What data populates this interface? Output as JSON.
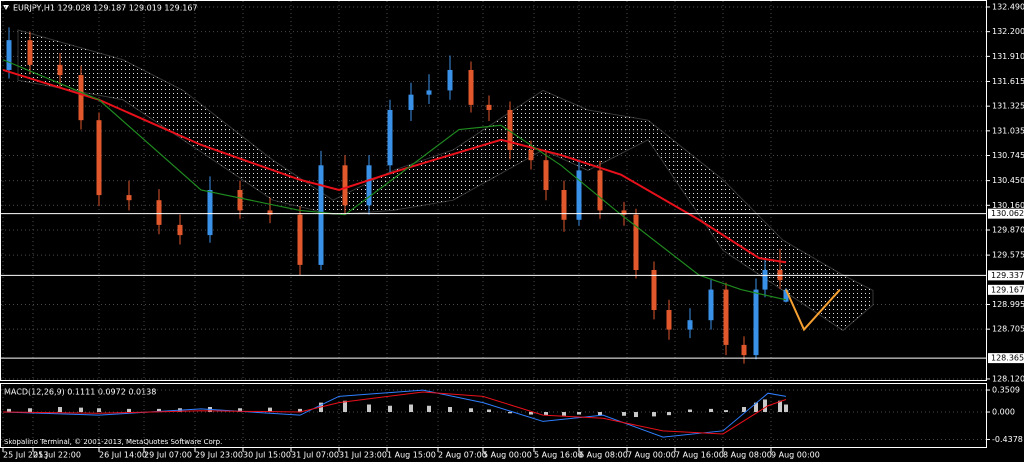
{
  "chart_data": [
    {
      "type": "candlestick",
      "title": "EURJPY,H1 129.028 129.187 129.019 129.167",
      "x": [
        2,
        9,
        19,
        26,
        32,
        42,
        52,
        59,
        69,
        79,
        89,
        99,
        106,
        114,
        122,
        129,
        136,
        142,
        149,
        156,
        162,
        169,
        176,
        181,
        187,
        192,
        199,
        207,
        211,
        217,
        222,
        229,
        236,
        241,
        247,
        251,
        254,
        259,
        261
      ],
      "open": [
        131.75,
        132.1,
        131.81,
        131.69,
        131.16,
        130.28,
        130.22,
        129.93,
        129.81,
        130.34,
        130.1,
        130.05,
        129.46,
        130.63,
        130.16,
        130.63,
        131.28,
        131.46,
        131.51,
        131.75,
        131.34,
        131.28,
        130.81,
        130.69,
        130.34,
        129.99,
        130.57,
        130.1,
        130.05,
        129.4,
        128.93,
        128.7,
        128.81,
        129.17,
        128.52,
        128.4,
        129.17,
        129.4,
        129.028
      ],
      "high": [
        132.25,
        132.2,
        131.95,
        131.8,
        131.25,
        130.45,
        130.35,
        130.05,
        130.5,
        130.45,
        130.25,
        130.15,
        130.8,
        130.75,
        130.75,
        131.4,
        131.6,
        131.7,
        131.92,
        131.85,
        131.45,
        131.38,
        130.92,
        130.8,
        130.45,
        130.7,
        130.68,
        130.2,
        130.12,
        129.5,
        129.05,
        128.95,
        129.3,
        129.25,
        128.62,
        129.3,
        129.52,
        129.65,
        129.187
      ],
      "low": [
        131.65,
        131.7,
        131.55,
        131.05,
        130.15,
        130.1,
        129.82,
        129.7,
        129.72,
        130.0,
        129.95,
        129.34,
        129.4,
        130.05,
        130.05,
        130.55,
        131.15,
        131.35,
        131.4,
        131.25,
        131.15,
        130.7,
        130.58,
        130.22,
        129.85,
        129.92,
        130.0,
        129.92,
        129.3,
        128.82,
        128.58,
        128.6,
        128.7,
        128.4,
        128.3,
        128.35,
        129.08,
        129.18,
        129.019
      ],
      "close": [
        132.1,
        131.81,
        131.69,
        131.16,
        130.28,
        130.22,
        129.93,
        129.81,
        130.34,
        130.1,
        130.05,
        129.46,
        130.63,
        130.16,
        130.63,
        131.28,
        131.46,
        131.51,
        131.75,
        131.34,
        131.28,
        130.81,
        130.69,
        130.34,
        129.99,
        130.57,
        130.1,
        130.05,
        129.4,
        128.93,
        128.7,
        128.81,
        129.17,
        128.52,
        128.4,
        129.17,
        129.4,
        129.28,
        129.167
      ],
      "up_color": "#3a92e8",
      "down_color": "#e0582c",
      "series": [
        {
          "color": "#e8101a",
          "x": [
            0,
            32,
            66,
            99,
            112,
            132,
            166,
            186,
            206,
            232,
            252,
            261
          ],
          "values": [
            131.75,
            131.4,
            130.87,
            130.46,
            130.34,
            130.57,
            130.93,
            130.75,
            130.52,
            129.99,
            129.54,
            129.49
          ]
        },
        {
          "color": "#1f8a1f",
          "x": [
            0,
            32,
            66,
            99,
            114,
            132,
            152,
            166,
            186,
            206,
            232,
            246,
            261
          ],
          "values": [
            131.87,
            131.4,
            130.34,
            130.1,
            130.05,
            130.52,
            131.05,
            131.1,
            130.63,
            130.05,
            129.34,
            129.17,
            129.05
          ]
        },
        {
          "color": "#f5a030",
          "x": [
            261,
            267,
            279
          ],
          "values": [
            129.17,
            128.7,
            129.17
          ]
        }
      ],
      "cloud": {
        "color": "#d8d8d8",
        "x": [
          5,
          40,
          60,
          90,
          110,
          130,
          150,
          180,
          195,
          215,
          240,
          260,
          280,
          290
        ],
        "upper": [
          132.22,
          131.87,
          131.51,
          130.69,
          130.22,
          130.57,
          130.81,
          131.51,
          131.28,
          131.16,
          130.46,
          129.75,
          129.34,
          129.16
        ],
        "lower": [
          131.63,
          131.4,
          130.93,
          130.22,
          130.05,
          130.1,
          130.22,
          130.81,
          130.57,
          130.93,
          129.63,
          129.16,
          128.69,
          128.99
        ]
      },
      "price_lines": [
        130.062,
        129.337,
        128.365
      ],
      "bid": 129.167,
      "xlim": [
        -1,
        328
      ],
      "xticks": [
        {
          "value": 0,
          "label": "25 Jul 2013"
        },
        {
          "value": 10,
          "label": "25 Jul 22:00"
        },
        {
          "value": 32,
          "label": "26 Jul 14:00"
        },
        {
          "value": 47,
          "label": "29 Jul 07:00"
        },
        {
          "value": 64,
          "label": "29 Jul 23:00"
        },
        {
          "value": 80,
          "label": "30 Jul 15:00"
        },
        {
          "value": 96,
          "label": "31 Jul 07:00"
        },
        {
          "value": 112,
          "label": "31 Jul 23:00"
        },
        {
          "value": 128,
          "label": "1 Aug 15:00"
        },
        {
          "value": 145,
          "label": "2 Aug 07:00"
        },
        {
          "value": 160,
          "label": "5 Aug 00:00"
        },
        {
          "value": 177,
          "label": "5 Aug 16:00"
        },
        {
          "value": 192,
          "label": "6 Aug 08:00"
        },
        {
          "value": 208,
          "label": "7 Aug 00:00"
        },
        {
          "value": 224,
          "label": "7 Aug 16:00"
        },
        {
          "value": 240,
          "label": "8 Aug 08:00"
        },
        {
          "value": 256,
          "label": "9 Aug 00:00"
        }
      ],
      "ylim": [
        128.096,
        132.572
      ],
      "yticks": [
        {
          "value": 132.49,
          "label": "132.490"
        },
        {
          "value": 132.2,
          "label": "132.200"
        },
        {
          "value": 131.91,
          "label": "131.910"
        },
        131.615,
        131.325,
        131.035,
        130.745,
        {
          "value": 130.45,
          "label": "130.450"
        },
        {
          "value": 130.16,
          "label": "130.160"
        },
        {
          "value": 129.87,
          "label": "129.870"
        },
        129.575,
        128.995,
        128.705,
        {
          "value": 128.12,
          "label": "128.120"
        }
      ],
      "grid": true
    },
    {
      "type": "bar",
      "title": "MACD(12,26,9) 0.1111 0.0972 0.0138",
      "annotation": "Skopalino Terminal, © 2001-2013, MetaQuotes Software Corp.",
      "x": [
        2,
        9,
        19,
        26,
        32,
        42,
        52,
        59,
        69,
        79,
        89,
        99,
        106,
        114,
        122,
        129,
        136,
        142,
        149,
        156,
        162,
        169,
        176,
        181,
        187,
        192,
        199,
        207,
        211,
        217,
        222,
        229,
        236,
        241,
        247,
        251,
        254,
        259,
        261
      ],
      "values": [
        0.05,
        0.06,
        0.08,
        0.07,
        0.06,
        0.05,
        0.05,
        0.06,
        0.08,
        0.06,
        0.07,
        0.05,
        0.15,
        0.18,
        0.12,
        0.1,
        0.12,
        0.1,
        0.08,
        0.06,
        0.04,
        -0.02,
        -0.04,
        -0.05,
        -0.06,
        -0.04,
        -0.05,
        -0.06,
        -0.08,
        -0.07,
        -0.05,
        0.04,
        0.05,
        0.03,
        0.08,
        0.15,
        0.2,
        0.18,
        0.12
      ],
      "color": "#c8c8c8",
      "series": [
        {
          "color": "#2f7fff",
          "x": [
            0,
            32,
            66,
            99,
            112,
            140,
            160,
            180,
            200,
            220,
            240,
            255,
            261
          ],
          "values": [
            0.0,
            -0.05,
            0.05,
            -0.05,
            0.25,
            0.35,
            0.15,
            -0.15,
            -0.05,
            -0.4,
            -0.3,
            0.3,
            0.25
          ]
        },
        {
          "color": "#e8101a",
          "x": [
            0,
            32,
            66,
            99,
            112,
            140,
            160,
            180,
            200,
            220,
            240,
            255,
            261
          ],
          "values": [
            0.0,
            -0.02,
            0.02,
            0.0,
            0.15,
            0.32,
            0.25,
            -0.05,
            -0.1,
            -0.3,
            -0.35,
            0.1,
            0.2
          ]
        }
      ],
      "xlim": [
        -1,
        328
      ],
      "ylim": [
        -0.574,
        0.447
      ],
      "yticks": [
        0.3509,
        {
          "value": 0,
          "label": "0.000"
        },
        -0.4378
      ],
      "grid": true
    }
  ]
}
